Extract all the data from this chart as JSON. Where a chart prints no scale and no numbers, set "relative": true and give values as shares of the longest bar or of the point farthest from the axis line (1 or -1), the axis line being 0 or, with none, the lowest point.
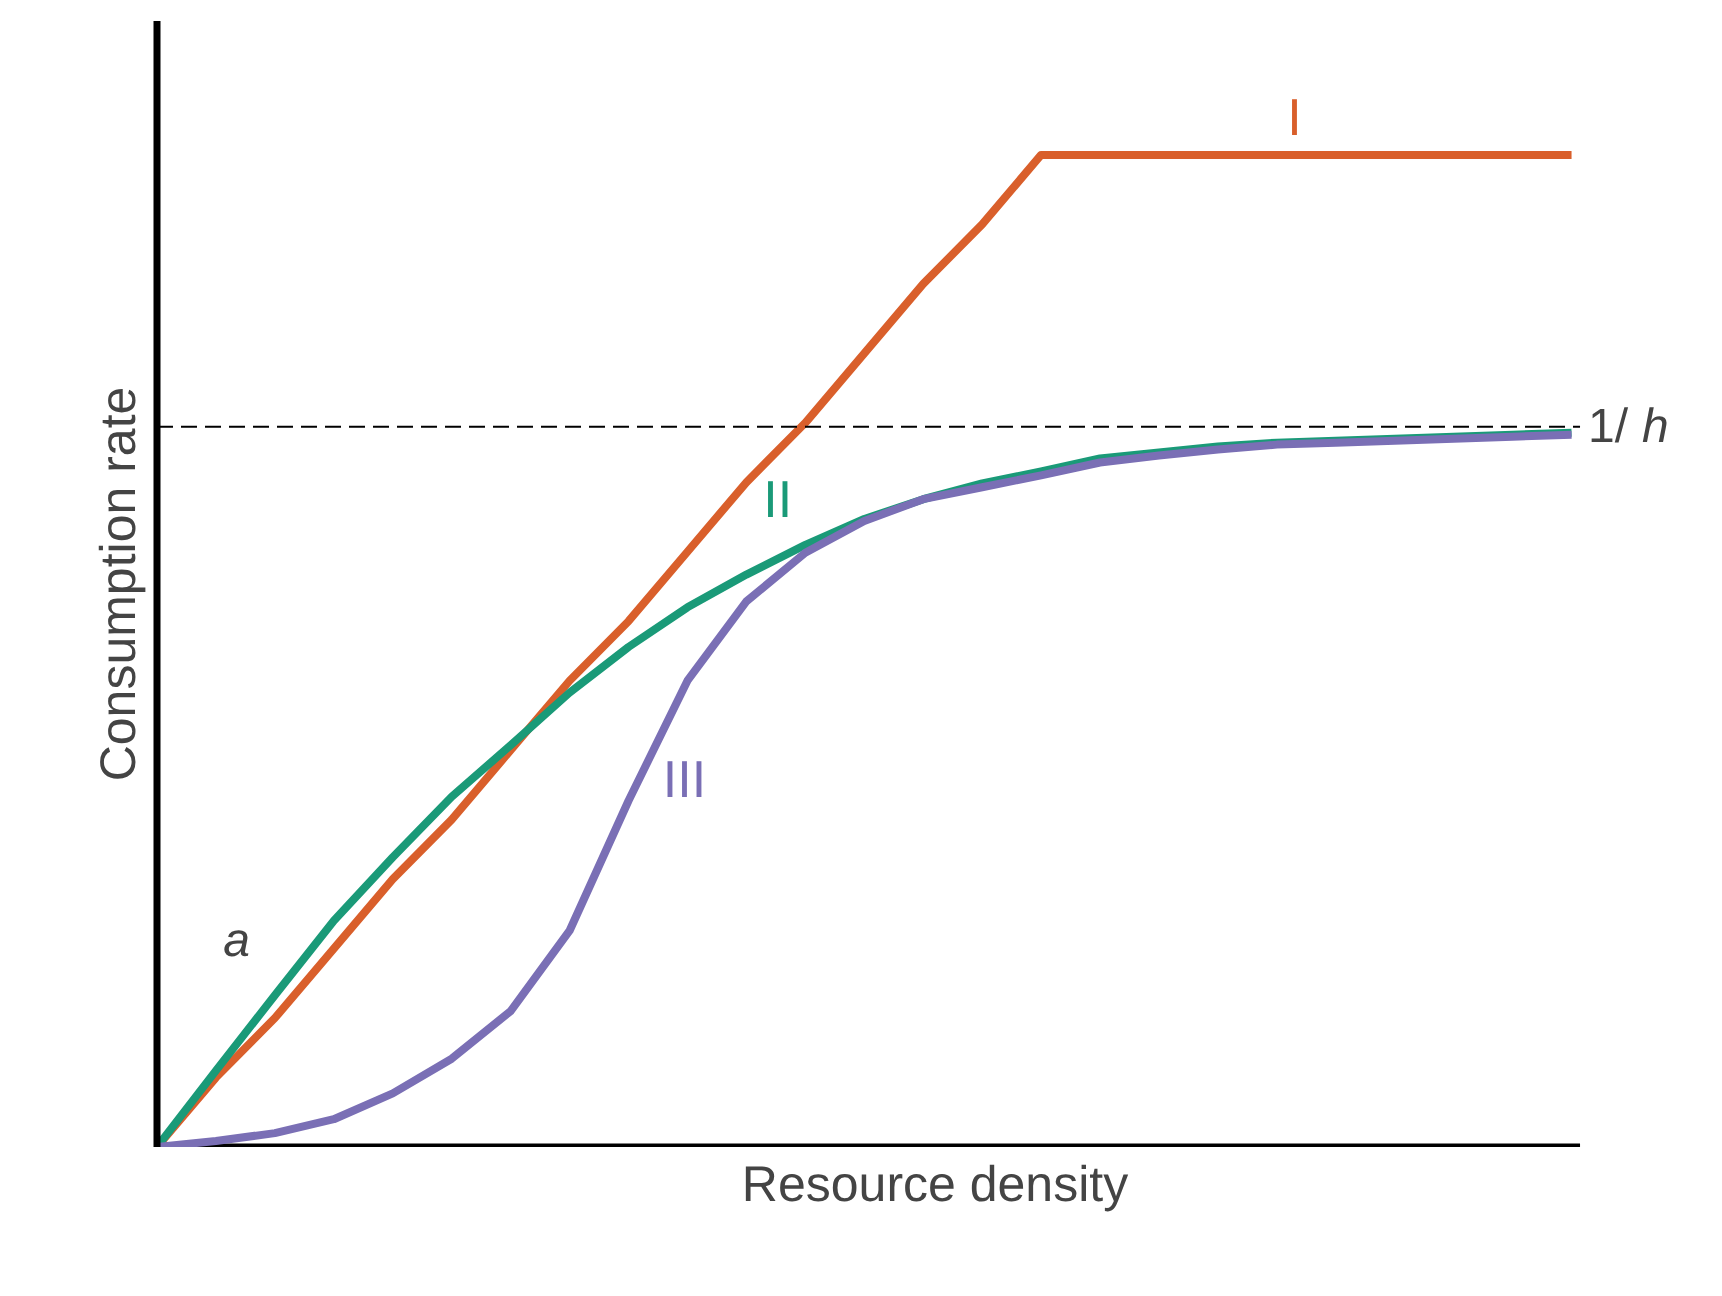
{
  "chart_data": {
    "type": "line",
    "relative": true,
    "xlabel": "Resource density",
    "ylabel": "Consumption rate",
    "categories": [
      null,
      null,
      null,
      null,
      null,
      null,
      null,
      null,
      null,
      null,
      null,
      null,
      null,
      null,
      null,
      null,
      null,
      null,
      null,
      null,
      null,
      null,
      null,
      null,
      null
    ],
    "series": [
      {
        "name": "I",
        "color": "#d95f2b",
        "values": [
          0,
          0.07,
          0.13,
          0.2,
          0.27,
          0.33,
          0.4,
          0.47,
          0.53,
          0.6,
          0.67,
          0.73,
          0.8,
          0.87,
          0.93,
          1,
          1,
          1,
          1,
          1,
          1,
          1,
          1,
          1,
          1
        ]
      },
      {
        "name": "II",
        "color": "#1a9a78",
        "values": [
          0,
          0.077,
          0.153,
          0.228,
          0.292,
          0.353,
          0.405,
          0.458,
          0.504,
          0.544,
          0.577,
          0.607,
          0.633,
          0.653,
          0.669,
          0.681,
          0.694,
          0.7,
          0.706,
          0.71,
          0.712,
          0.714,
          0.716,
          0.718,
          0.72
        ]
      },
      {
        "name": "III",
        "color": "#7a6fb5",
        "values": [
          0,
          0.006,
          0.014,
          0.028,
          0.054,
          0.089,
          0.137,
          0.218,
          0.349,
          0.47,
          0.55,
          0.599,
          0.631,
          0.653,
          0.665,
          0.677,
          0.69,
          0.697,
          0.703,
          0.708,
          0.71,
          0.712,
          0.714,
          0.716,
          0.718
        ]
      }
    ],
    "ref_lines": [
      {
        "axis": "y",
        "value": 0.726,
        "label": "1/h",
        "color": "#000000",
        "line_style": "dashed"
      }
    ],
    "annotations": [
      "a"
    ],
    "marker": "none",
    "line_style": "solid"
  }
}
